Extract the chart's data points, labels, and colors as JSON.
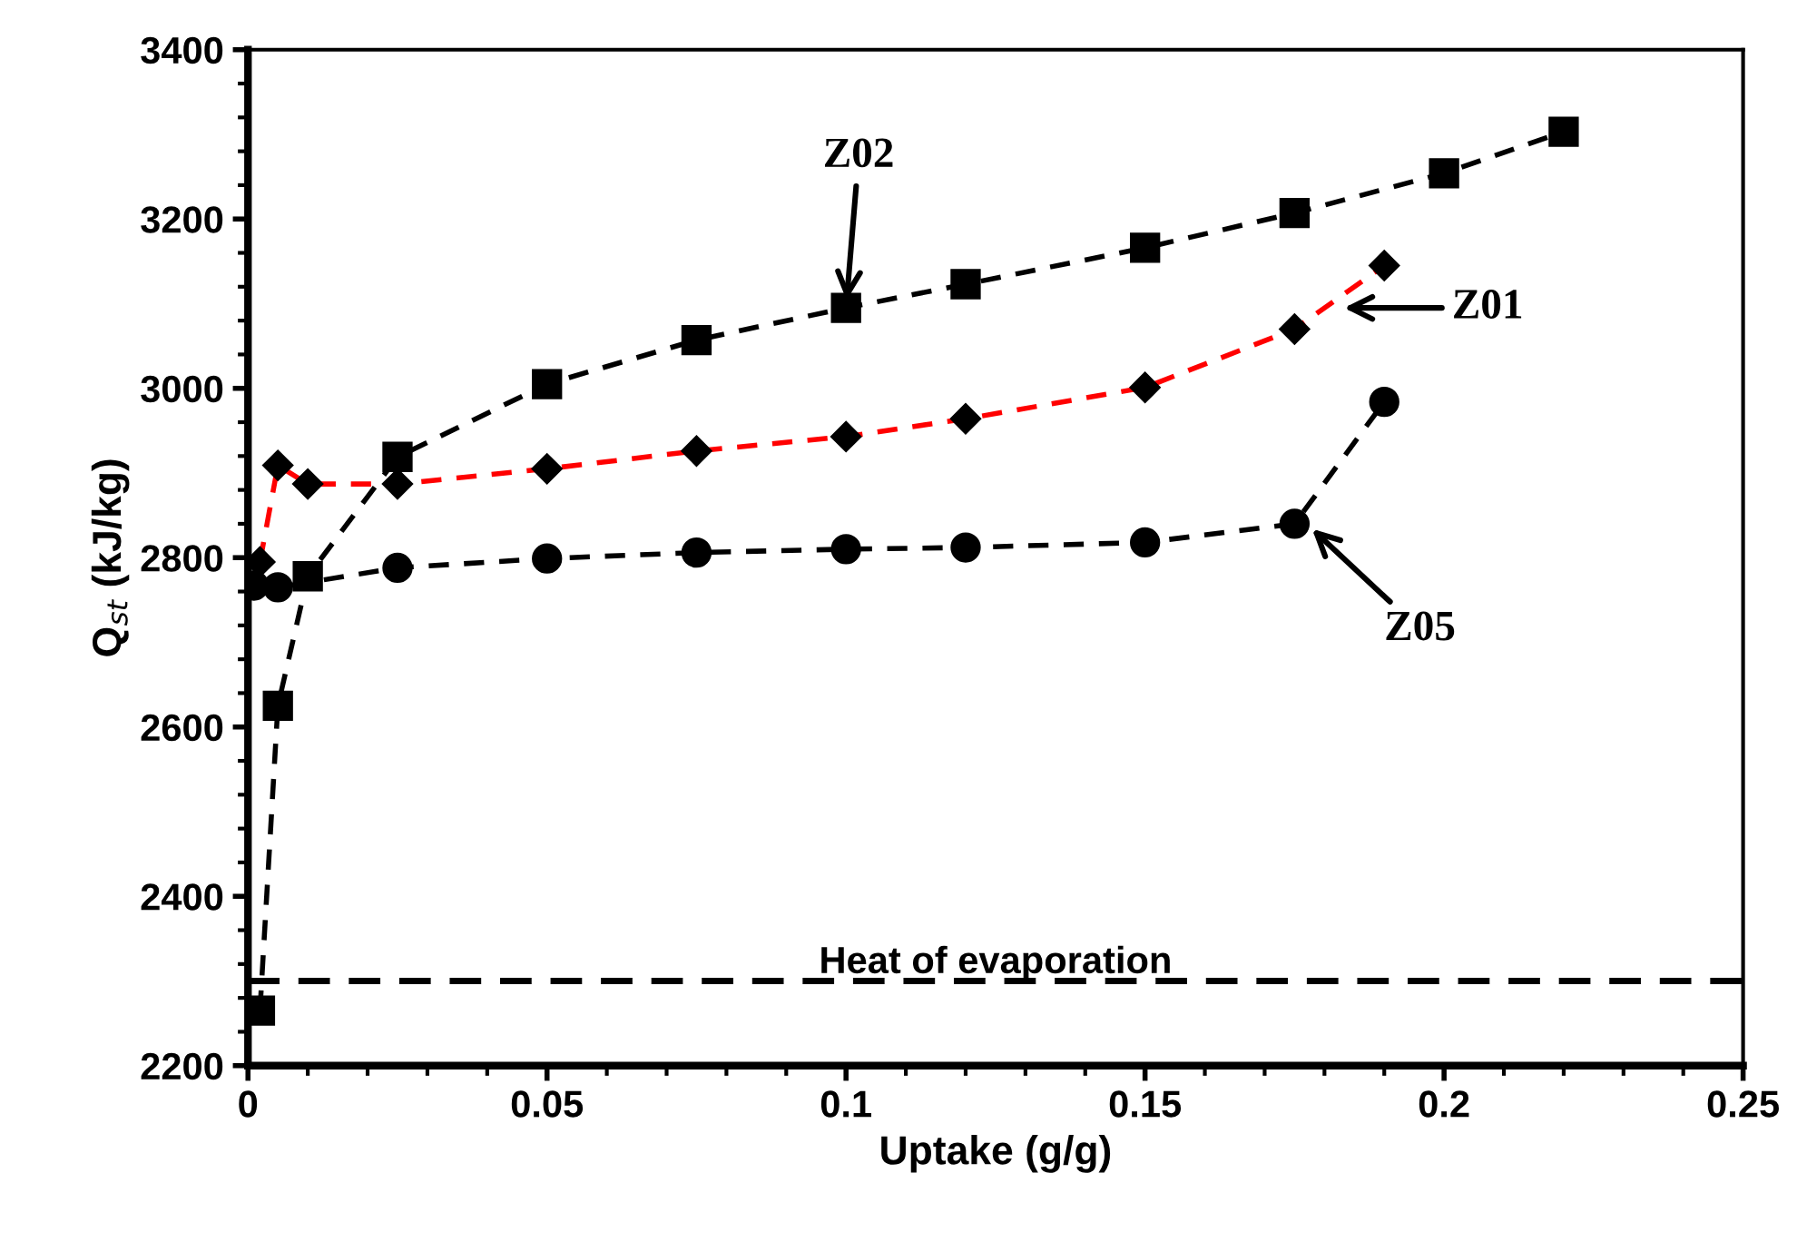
{
  "chart_data": {
    "type": "line",
    "xlabel": "Uptake (g/g)",
    "ylabel": "Q$_{st}$ (kJ/kg)",
    "xlim": [
      0,
      0.25
    ],
    "xticks": [
      0,
      0.05,
      0.1,
      0.15,
      0.2,
      0.25
    ],
    "ylim": [
      2200,
      3400
    ],
    "yticks": [
      2200,
      2400,
      2600,
      2800,
      3000,
      3200,
      3400
    ],
    "grid": false,
    "legend": false,
    "line_style": "dashed",
    "series": [
      {
        "color": "#000000",
        "marker": "square",
        "x": [
          0.002,
          0.005,
          0.01,
          0.025,
          0.05,
          0.075,
          0.1,
          0.12,
          0.15,
          0.175,
          0.2,
          0.22
        ],
        "values": [
          2265,
          2625,
          2778,
          2919,
          3005,
          3057,
          3095,
          3123,
          3166,
          3207,
          3254,
          3303
        ]
      },
      {
        "color": "#ff0000",
        "marker": "diamond",
        "x": [
          0.002,
          0.005,
          0.01,
          0.025,
          0.05,
          0.075,
          0.1,
          0.12,
          0.15,
          0.175,
          0.19
        ],
        "values": [
          2795,
          2909,
          2887,
          2887,
          2905,
          2926,
          2943,
          2964,
          3001,
          3070,
          3145
        ]
      },
      {
        "color": "#000000",
        "marker": "circle",
        "x": [
          0.001,
          0.005,
          0.025,
          0.05,
          0.075,
          0.1,
          0.12,
          0.15,
          0.175,
          0.19
        ],
        "values": [
          2767,
          2765,
          2788,
          2799,
          2806,
          2810,
          2812,
          2818,
          2840,
          2984
        ]
      }
    ],
    "ref_lines": [
      {
        "axis": "y",
        "value": 2300,
        "label": "Heat of evaporation",
        "color": "#000000",
        "line_style": "dashed"
      }
    ],
    "annotations": [
      {
        "text": "Z02",
        "x": 0.1,
        "y": 3095
      },
      {
        "text": "Z01",
        "x": 0.182,
        "y": 3095
      },
      {
        "text": "Z05",
        "x": 0.177,
        "y": 2840
      }
    ]
  }
}
